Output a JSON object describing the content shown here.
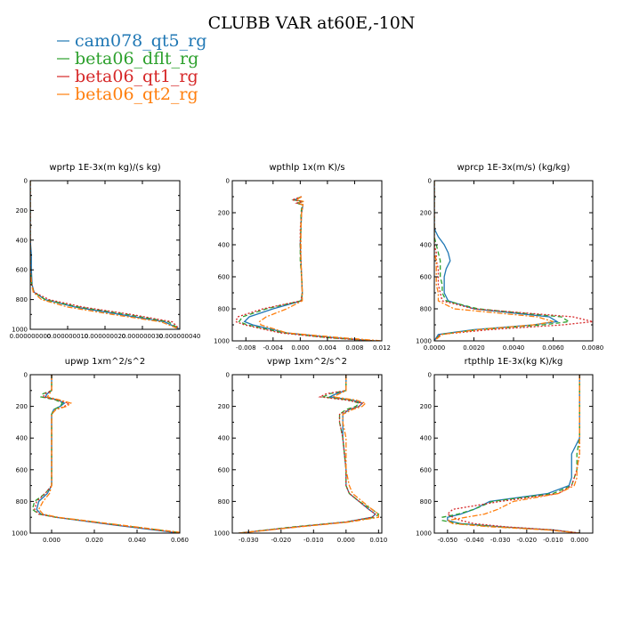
{
  "figure_title": "CLUBB VAR at60E,-10N",
  "legend": [
    {
      "name": "cam078_qt5_rg",
      "color": "#1f77b4",
      "dash": "solid"
    },
    {
      "name": "beta06_dflt_rg",
      "color": "#2ca02c",
      "dash": "dashed"
    },
    {
      "name": "beta06_qt1_rg",
      "color": "#d62728",
      "dash": "dotted"
    },
    {
      "name": "beta06_qt2_rg",
      "color": "#ff7f0e",
      "dash": "dashdot"
    }
  ],
  "chart_data": [
    {
      "type": "line",
      "title": "wprtp  1E-3x(m kg)/(s kg)",
      "xlim": [
        0,
        4e-08
      ],
      "ylim": [
        0,
        1000
      ],
      "y_inverted": true,
      "xticks": [
        "0.000000000",
        "0.000000010",
        "0.000000020",
        "0.000000030",
        "0.000000040"
      ],
      "xtick_values": [
        0,
        1e-08,
        2e-08,
        3e-08,
        4e-08
      ],
      "yticks": [
        "0",
        "200",
        "400",
        "600",
        "800",
        "1000"
      ],
      "y": [
        0,
        100,
        200,
        300,
        400,
        500,
        600,
        700,
        750,
        800,
        850,
        900,
        950,
        1000
      ],
      "series": [
        {
          "values": [
            0,
            0,
            0,
            0,
            0,
            3e-10,
            3e-10,
            5e-10,
            1e-09,
            4e-09,
            1.2e-08,
            2.4e-08,
            3.6e-08,
            4e-08
          ]
        },
        {
          "values": [
            0,
            0,
            0,
            0,
            0,
            0,
            0,
            4e-10,
            1e-09,
            4e-09,
            1.3e-08,
            2.6e-08,
            3.7e-08,
            4e-08
          ]
        },
        {
          "values": [
            0,
            0,
            0,
            0,
            0,
            0,
            0,
            4e-10,
            1e-09,
            5e-09,
            1.4e-08,
            2.7e-08,
            3.8e-08,
            4e-08
          ]
        },
        {
          "values": [
            0,
            0,
            0,
            0,
            0,
            0,
            0,
            4e-10,
            8e-10,
            3e-09,
            1e-08,
            2.2e-08,
            3.5e-08,
            4e-08
          ]
        }
      ]
    },
    {
      "type": "line",
      "title": "wpthlp  1x(m K)/s",
      "xlim": [
        -0.01,
        0.012
      ],
      "ylim": [
        0,
        1000
      ],
      "y_inverted": true,
      "xticks": [
        "-0.008",
        "-0.004",
        "0.000",
        "0.004",
        "0.008",
        "0.012"
      ],
      "xtick_values": [
        -0.008,
        -0.004,
        0,
        0.004,
        0.008,
        0.012
      ],
      "yticks": [
        "0",
        "200",
        "400",
        "600",
        "800",
        "1000"
      ],
      "y": [
        100,
        120,
        130,
        140,
        150,
        200,
        300,
        400,
        500,
        600,
        700,
        750,
        800,
        850,
        880,
        900,
        950,
        980,
        1000
      ],
      "series": [
        {
          "values": [
            0.0002,
            -0.0008,
            0.0004,
            -0.0004,
            0.0004,
            0.0002,
            0.0001,
            0,
            0.0001,
            0.0002,
            0.0003,
            0.0002,
            -0.004,
            -0.0075,
            -0.0082,
            -0.007,
            -0.002,
            0.005,
            0.011
          ]
        },
        {
          "values": [
            0.0002,
            -0.001,
            0.0005,
            -0.0006,
            0.0003,
            0.0001,
            0.0001,
            0,
            0,
            0.0002,
            0.0003,
            0.0001,
            -0.005,
            -0.0085,
            -0.009,
            -0.0078,
            -0.0025,
            0.004,
            0.011
          ]
        },
        {
          "values": [
            0.0002,
            -0.0012,
            0.0003,
            -0.0005,
            0.0004,
            0.0002,
            0,
            0,
            0.0001,
            0.0002,
            0.0003,
            0.0001,
            -0.0055,
            -0.0092,
            -0.0095,
            -0.0082,
            -0.003,
            0.004,
            0.011
          ]
        },
        {
          "values": [
            0.0002,
            -0.0006,
            0.0005,
            -0.0003,
            0.0004,
            0.0002,
            0.0001,
            0.0001,
            0.0001,
            0.0002,
            0.0003,
            0.0003,
            -0.002,
            -0.005,
            -0.006,
            -0.0058,
            -0.002,
            0.006,
            0.012
          ]
        }
      ]
    },
    {
      "type": "line",
      "title": "wprcp  1E-3x(m/s) (kg/kg)",
      "xlim": [
        0,
        0.008
      ],
      "ylim": [
        0,
        1000
      ],
      "y_inverted": true,
      "xticks": [
        "0.0000",
        "0.0020",
        "0.0040",
        "0.0060",
        "0.0080"
      ],
      "xtick_values": [
        0,
        0.002,
        0.004,
        0.006,
        0.008
      ],
      "yticks": [
        "0",
        "200",
        "400",
        "600",
        "800",
        "1000"
      ],
      "y": [
        0,
        300,
        350,
        400,
        450,
        500,
        550,
        600,
        650,
        700,
        750,
        800,
        850,
        880,
        900,
        930,
        960,
        1000
      ],
      "series": [
        {
          "values": [
            0,
            0,
            0.0002,
            0.0005,
            0.0007,
            0.0008,
            0.0006,
            0.0005,
            0.0005,
            0.0005,
            0.0007,
            0.002,
            0.0058,
            0.0062,
            0.005,
            0.002,
            0.0002,
            0
          ]
        },
        {
          "values": [
            0,
            0,
            0,
            0.0001,
            0.0002,
            0.0003,
            0.0003,
            0.0003,
            0.0004,
            0.0004,
            0.0006,
            0.0022,
            0.0064,
            0.0068,
            0.0055,
            0.0022,
            0.0003,
            0
          ]
        },
        {
          "values": [
            0,
            0,
            0,
            0,
            0.0001,
            0.0001,
            0.0002,
            0.0002,
            0.0002,
            0.0003,
            0.0004,
            0.002,
            0.007,
            0.008,
            0.0065,
            0.0028,
            0.0003,
            0
          ]
        },
        {
          "values": [
            0,
            0,
            0,
            0,
            0,
            0.0001,
            0.0001,
            0.0001,
            0.0001,
            0.0002,
            0.0002,
            0.001,
            0.0052,
            0.006,
            0.005,
            0.0022,
            0.0004,
            0
          ]
        }
      ]
    },
    {
      "type": "line",
      "title": "upwp  1xm^2/s^2",
      "xlim": [
        -0.01,
        0.06
      ],
      "ylim": [
        0,
        1000
      ],
      "y_inverted": true,
      "xticks": [
        "0.000",
        "0.020",
        "0.040",
        "0.060"
      ],
      "xtick_values": [
        0,
        0.02,
        0.04,
        0.06
      ],
      "yticks": [
        "0",
        "200",
        "400",
        "600",
        "800",
        "1000"
      ],
      "y": [
        0,
        100,
        120,
        140,
        160,
        180,
        200,
        220,
        250,
        300,
        400,
        600,
        700,
        750,
        800,
        850,
        880,
        900,
        950,
        1000
      ],
      "series": [
        {
          "values": [
            0,
            0,
            -0.002,
            -0.003,
            0.003,
            0.006,
            0.004,
            0.001,
            0,
            0,
            0,
            0,
            0,
            -0.002,
            -0.006,
            -0.007,
            -0.005,
            0.002,
            0.03,
            0.06
          ]
        },
        {
          "values": [
            0,
            0,
            -0.004,
            -0.005,
            0.002,
            0.005,
            0.004,
            0.001,
            0,
            0,
            0,
            0,
            0,
            -0.003,
            -0.008,
            -0.009,
            -0.006,
            0.002,
            0.032,
            0.062
          ]
        },
        {
          "values": [
            0,
            0,
            -0.003,
            -0.004,
            0.003,
            0.008,
            0.006,
            0.002,
            0,
            0,
            0,
            0,
            0,
            -0.003,
            -0.007,
            -0.008,
            -0.006,
            0.002,
            0.031,
            0.061
          ]
        },
        {
          "values": [
            0,
            0,
            -0.001,
            -0.002,
            0.004,
            0.009,
            0.007,
            0.002,
            0,
            0,
            0,
            0,
            0,
            -0.001,
            -0.004,
            -0.006,
            -0.004,
            0.003,
            0.033,
            0.063
          ]
        }
      ]
    },
    {
      "type": "line",
      "title": "vpwp  1xm^2/s^2",
      "xlim": [
        -0.035,
        0.011
      ],
      "ylim": [
        0,
        1000
      ],
      "y_inverted": true,
      "xticks": [
        "-0.030",
        "-0.020",
        "-0.010",
        "0.000",
        "0.010"
      ],
      "xtick_values": [
        -0.03,
        -0.02,
        -0.01,
        0,
        0.01
      ],
      "yticks": [
        "0",
        "200",
        "400",
        "600",
        "800",
        "1000"
      ],
      "y": [
        0,
        100,
        120,
        140,
        160,
        180,
        200,
        220,
        250,
        300,
        400,
        600,
        700,
        750,
        800,
        850,
        880,
        900,
        930,
        960,
        1000
      ],
      "series": [
        {
          "values": [
            0,
            0,
            -0.003,
            -0.005,
            0.002,
            0.005,
            0.004,
            0.001,
            -0.001,
            -0.001,
            -0.001,
            0,
            0,
            0.001,
            0.004,
            0.007,
            0.009,
            0.008,
            0.0,
            -0.015,
            -0.033
          ]
        },
        {
          "values": [
            0,
            0,
            -0.005,
            -0.007,
            0.001,
            0.004,
            0.003,
            0.0,
            -0.002,
            -0.002,
            -0.001,
            0,
            0,
            0.001,
            0.004,
            0.008,
            0.01,
            0.009,
            0.0,
            -0.016,
            -0.033
          ]
        },
        {
          "values": [
            0,
            0,
            -0.006,
            -0.008,
            0.0,
            0.005,
            0.004,
            0.001,
            -0.002,
            -0.002,
            -0.001,
            0,
            0,
            0.001,
            0.004,
            0.007,
            0.009,
            0.008,
            0.0,
            -0.015,
            -0.033
          ]
        },
        {
          "values": [
            0,
            0,
            -0.002,
            -0.004,
            0.003,
            0.006,
            0.005,
            0.002,
            -0.001,
            -0.001,
            0,
            0,
            0.001,
            0.002,
            0.005,
            0.008,
            0.01,
            0.01,
            0.001,
            -0.014,
            -0.033
          ]
        }
      ]
    },
    {
      "type": "line",
      "title": "rtpthlp  1E-3x(kg K)/kg",
      "xlim": [
        -0.055,
        0.005
      ],
      "ylim": [
        0,
        1000
      ],
      "y_inverted": true,
      "xticks": [
        "-0.050",
        "-0.040",
        "-0.030",
        "-0.020",
        "-0.010",
        "0.000"
      ],
      "xtick_values": [
        -0.05,
        -0.04,
        -0.03,
        -0.02,
        -0.01,
        0
      ],
      "yticks": [
        "0",
        "200",
        "400",
        "600",
        "800",
        "1000"
      ],
      "y": [
        0,
        300,
        400,
        500,
        600,
        650,
        700,
        750,
        800,
        850,
        880,
        900,
        920,
        940,
        960,
        980,
        1000
      ],
      "series": [
        {
          "values": [
            0,
            0,
            0,
            -0.003,
            -0.003,
            -0.003,
            -0.004,
            -0.012,
            -0.034,
            -0.04,
            -0.045,
            -0.05,
            -0.05,
            -0.045,
            -0.03,
            -0.01,
            0
          ]
        },
        {
          "values": [
            0,
            0,
            0,
            -0.001,
            -0.001,
            -0.002,
            -0.003,
            -0.01,
            -0.033,
            -0.04,
            -0.046,
            -0.052,
            -0.052,
            -0.046,
            -0.031,
            -0.011,
            0
          ]
        },
        {
          "values": [
            0,
            0,
            0,
            0,
            -0.001,
            -0.002,
            -0.003,
            -0.008,
            -0.03,
            -0.048,
            -0.05,
            -0.048,
            -0.045,
            -0.04,
            -0.028,
            -0.01,
            0
          ]
        },
        {
          "values": [
            0,
            0,
            0,
            0,
            -0.001,
            -0.001,
            -0.002,
            -0.008,
            -0.025,
            -0.031,
            -0.036,
            -0.043,
            -0.05,
            -0.048,
            -0.034,
            -0.012,
            0
          ]
        }
      ]
    }
  ]
}
